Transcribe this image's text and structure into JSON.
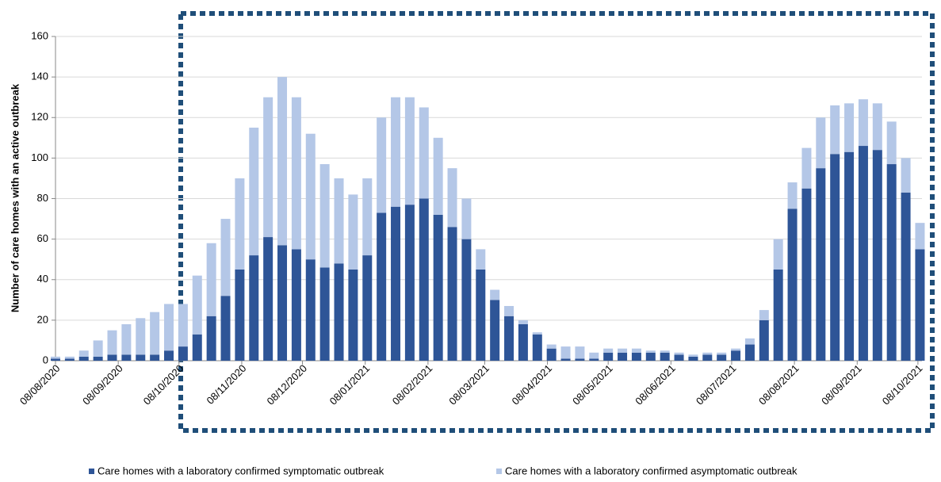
{
  "chart_data": {
    "type": "bar",
    "stacked": true,
    "y_label": "Number of care homes with an active outbreak",
    "x": [
      "08/08/2020",
      "15/08/2020",
      "22/08/2020",
      "29/08/2020",
      "05/09/2020",
      "12/09/2020",
      "19/09/2020",
      "26/09/2020",
      "03/10/2020",
      "10/10/2020",
      "17/10/2020",
      "24/10/2020",
      "31/10/2020",
      "07/11/2020",
      "14/11/2020",
      "21/11/2020",
      "28/11/2020",
      "05/12/2020",
      "12/12/2020",
      "19/12/2020",
      "26/12/2020",
      "02/01/2021",
      "09/01/2021",
      "16/01/2021",
      "23/01/2021",
      "30/01/2021",
      "06/02/2021",
      "13/02/2021",
      "20/02/2021",
      "27/02/2021",
      "06/03/2021",
      "13/03/2021",
      "20/03/2021",
      "27/03/2021",
      "03/04/2021",
      "10/04/2021",
      "17/04/2021",
      "24/04/2021",
      "01/05/2021",
      "08/05/2021",
      "15/05/2021",
      "22/05/2021",
      "29/05/2021",
      "05/06/2021",
      "12/06/2021",
      "19/06/2021",
      "26/06/2021",
      "03/07/2021",
      "10/07/2021",
      "17/07/2021",
      "24/07/2021",
      "31/07/2021",
      "07/08/2021",
      "14/08/2021",
      "21/08/2021",
      "28/08/2021",
      "04/09/2021",
      "11/09/2021",
      "18/09/2021",
      "25/09/2021",
      "02/10/2021",
      "09/10/2021"
    ],
    "series": [
      {
        "name": "Care homes with a laboratory confirmed symptomatic outbreak",
        "color": "#2e5597",
        "values": [
          1,
          1,
          2,
          2,
          3,
          3,
          3,
          3,
          5,
          7,
          13,
          22,
          32,
          45,
          52,
          61,
          57,
          55,
          50,
          46,
          48,
          45,
          52,
          73,
          76,
          77,
          80,
          72,
          66,
          60,
          45,
          30,
          22,
          18,
          13,
          6,
          1,
          1,
          1,
          4,
          4,
          4,
          4,
          4,
          3,
          2,
          3,
          3,
          5,
          8,
          20,
          45,
          75,
          85,
          95,
          102,
          103,
          106,
          104,
          97,
          83,
          55
        ]
      },
      {
        "name": "Care homes with a laboratory confirmed asymptomatic outbreak",
        "color": "#b4c7e7",
        "values": [
          1,
          1,
          3,
          8,
          12,
          15,
          18,
          21,
          23,
          21,
          29,
          36,
          38,
          45,
          63,
          69,
          83,
          75,
          62,
          51,
          42,
          37,
          38,
          47,
          54,
          53,
          45,
          38,
          29,
          20,
          10,
          5,
          5,
          2,
          1,
          2,
          6,
          6,
          3,
          2,
          2,
          2,
          1,
          1,
          1,
          1,
          1,
          1,
          1,
          3,
          5,
          15,
          13,
          20,
          25,
          24,
          24,
          23,
          23,
          21,
          17,
          13
        ]
      }
    ],
    "xlim": [
      "08/08/2020",
      "10/10/2021"
    ],
    "xticks": [
      "08/08/2020",
      "08/09/2020",
      "08/10/2020",
      "08/11/2020",
      "08/12/2020",
      "08/01/2021",
      "08/02/2021",
      "08/03/2021",
      "08/04/2021",
      "08/05/2021",
      "08/06/2021",
      "08/07/2021",
      "08/08/2021",
      "08/09/2021",
      "08/10/2021"
    ],
    "ylim": [
      0,
      160
    ],
    "yticks": [
      0,
      20,
      40,
      60,
      80,
      100,
      120,
      140,
      160
    ],
    "grid": true
  }
}
